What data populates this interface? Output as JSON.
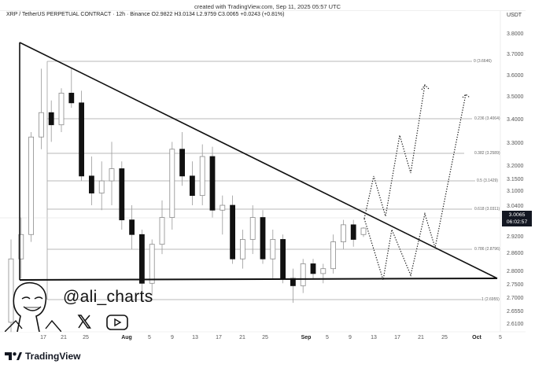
{
  "header": {
    "caption": "created with TradingView.com, Sep 11, 2025 05:57 UTC",
    "legend": "XRP / TetherUS PERPETUAL CONTRACT · 12h · Binance  O2.9822  H3.0134  L2.9759  C3.0065  +0.0243 (+0.81%)",
    "currency": "USDT"
  },
  "price_tag": {
    "price": "3.0065",
    "countdown": "06:02:57"
  },
  "watermark": {
    "handle": "@ali_charts",
    "icons": [
      "x-logo-icon",
      "youtube-play-icon"
    ],
    "brand": "TradingView"
  },
  "colors": {
    "background": "#ffffff",
    "candle_up": "#ffffff",
    "candle_down": "#111111",
    "wick": "#9a9a9a",
    "trendline": "#111111",
    "fib_line": "#9e9e9e",
    "price_tag_bg": "#131722"
  },
  "chart_data": {
    "type": "candlestick",
    "title": "XRP / TetherUS PERPETUAL CONTRACT - 12h - Binance",
    "ohlc_latest": {
      "open": 2.9822,
      "high": 3.0134,
      "low": 2.9759,
      "close": 3.0065,
      "change": 0.0243,
      "change_pct": 0.81
    },
    "xlabel": "",
    "ylabel": "USDT",
    "y_ticks": [
      3.8,
      3.7,
      3.6,
      3.5,
      3.4,
      3.3,
      3.2,
      3.15,
      3.1,
      3.04,
      2.92,
      2.86,
      2.8,
      2.75,
      2.7,
      2.655,
      2.61
    ],
    "y_tick_labels": [
      "3.8000",
      "3.7000",
      "3.6000",
      "3.5000",
      "3.4000",
      "3.3000",
      "3.2000",
      "3.1500",
      "3.1000",
      "3.0400",
      "2.9200",
      "2.8600",
      "2.8000",
      "2.7500",
      "2.7000",
      "2.6550",
      "2.6100"
    ],
    "x_tick_labels": [
      "17",
      "21",
      "25",
      "Aug",
      "5",
      "9",
      "13",
      "17",
      "21",
      "25",
      "Sep",
      "5",
      "9",
      "13",
      "17",
      "21",
      "25",
      "Oct",
      "5"
    ],
    "ylim": [
      2.58,
      3.85
    ],
    "grid": false,
    "fibonacci_retracement": [
      {
        "level": "0",
        "price": 3.6646,
        "label": "0 (3.6646)"
      },
      {
        "level": "0.236",
        "price": 3.4064,
        "label": "0.236 (3.4064)"
      },
      {
        "level": "0.382",
        "price": 3.2589,
        "label": "0.382 (3.2589)"
      },
      {
        "level": "0.5",
        "price": 3.1429,
        "label": "0.5 (3.1429)"
      },
      {
        "level": "0.618",
        "price": 3.0311,
        "label": "0.618 (3.0311)"
      },
      {
        "level": "0.786",
        "price": 2.8796,
        "label": "0.786 (2.8796)"
      },
      {
        "level": "1",
        "price": 2.6955,
        "label": "1 (2.6955)"
      }
    ],
    "annotations": [
      "Descending triangle: upper trendline from ~3.76 (mid-July) falling to apex ~2.77 near Oct 1",
      "Horizontal support at ~2.77",
      "Projected dotted zig-zag paths breaking out toward ~3.55"
    ],
    "candles_approx": [
      {
        "x": "Jul 14",
        "o": 2.62,
        "h": 2.96,
        "l": 2.58,
        "c": 2.88
      },
      {
        "x": "Jul 16",
        "o": 2.88,
        "h": 3.05,
        "l": 2.8,
        "c": 2.98
      },
      {
        "x": "Jul 17",
        "o": 2.98,
        "h": 3.4,
        "l": 2.95,
        "c": 3.38
      },
      {
        "x": "Jul 18",
        "o": 3.38,
        "h": 3.66,
        "l": 3.33,
        "c": 3.48
      },
      {
        "x": "Jul 19",
        "o": 3.48,
        "h": 3.53,
        "l": 3.36,
        "c": 3.43
      },
      {
        "x": "Jul 20",
        "o": 3.43,
        "h": 3.58,
        "l": 3.4,
        "c": 3.56
      },
      {
        "x": "Jul 21",
        "o": 3.56,
        "h": 3.66,
        "l": 3.5,
        "c": 3.52
      },
      {
        "x": "Jul 22",
        "o": 3.52,
        "h": 3.57,
        "l": 3.2,
        "c": 3.22
      },
      {
        "x": "Jul 23",
        "o": 3.22,
        "h": 3.3,
        "l": 3.1,
        "c": 3.15
      },
      {
        "x": "Jul 25",
        "o": 3.15,
        "h": 3.28,
        "l": 3.08,
        "c": 3.2
      },
      {
        "x": "Jul 27",
        "o": 3.2,
        "h": 3.36,
        "l": 3.1,
        "c": 3.25
      },
      {
        "x": "Jul 28",
        "o": 3.25,
        "h": 3.28,
        "l": 3.0,
        "c": 3.04
      },
      {
        "x": "Jul 30",
        "o": 3.04,
        "h": 3.1,
        "l": 2.92,
        "c": 2.98
      },
      {
        "x": "Aug 1",
        "o": 2.98,
        "h": 3.0,
        "l": 2.72,
        "c": 2.78
      },
      {
        "x": "Aug 3",
        "o": 2.78,
        "h": 2.96,
        "l": 2.73,
        "c": 2.94
      },
      {
        "x": "Aug 6",
        "o": 2.94,
        "h": 3.12,
        "l": 2.9,
        "c": 3.05
      },
      {
        "x": "Aug 8",
        "o": 3.05,
        "h": 3.36,
        "l": 3.0,
        "c": 3.33
      },
      {
        "x": "Aug 10",
        "o": 3.33,
        "h": 3.4,
        "l": 3.18,
        "c": 3.22
      },
      {
        "x": "Aug 12",
        "o": 3.22,
        "h": 3.28,
        "l": 3.1,
        "c": 3.14
      },
      {
        "x": "Aug 14",
        "o": 3.14,
        "h": 3.35,
        "l": 3.1,
        "c": 3.3
      },
      {
        "x": "Aug 15",
        "o": 3.3,
        "h": 3.34,
        "l": 3.05,
        "c": 3.08
      },
      {
        "x": "Aug 17",
        "o": 3.08,
        "h": 3.14,
        "l": 2.98,
        "c": 3.1
      },
      {
        "x": "Aug 19",
        "o": 3.1,
        "h": 3.14,
        "l": 2.86,
        "c": 2.88
      },
      {
        "x": "Aug 21",
        "o": 2.88,
        "h": 3.0,
        "l": 2.84,
        "c": 2.96
      },
      {
        "x": "Aug 23",
        "o": 2.96,
        "h": 3.1,
        "l": 2.9,
        "c": 3.05
      },
      {
        "x": "Aug 25",
        "o": 3.05,
        "h": 3.08,
        "l": 2.86,
        "c": 2.88
      },
      {
        "x": "Aug 27",
        "o": 2.88,
        "h": 3.0,
        "l": 2.8,
        "c": 2.96
      },
      {
        "x": "Aug 29",
        "o": 2.96,
        "h": 2.98,
        "l": 2.78,
        "c": 2.8
      },
      {
        "x": "Sep 1",
        "o": 2.8,
        "h": 2.84,
        "l": 2.7,
        "c": 2.77
      },
      {
        "x": "Sep 2",
        "o": 2.77,
        "h": 2.88,
        "l": 2.74,
        "c": 2.86
      },
      {
        "x": "Sep 4",
        "o": 2.86,
        "h": 2.88,
        "l": 2.8,
        "c": 2.82
      },
      {
        "x": "Sep 6",
        "o": 2.82,
        "h": 2.86,
        "l": 2.78,
        "c": 2.84
      },
      {
        "x": "Sep 8",
        "o": 2.84,
        "h": 2.98,
        "l": 2.82,
        "c": 2.95
      },
      {
        "x": "Sep 9",
        "o": 2.95,
        "h": 3.04,
        "l": 2.92,
        "c": 3.02
      },
      {
        "x": "Sep 10",
        "o": 3.02,
        "h": 3.04,
        "l": 2.93,
        "c": 2.96
      },
      {
        "x": "Sep 11",
        "o": 2.98,
        "h": 3.01,
        "l": 2.97,
        "c": 3.0065
      }
    ]
  }
}
